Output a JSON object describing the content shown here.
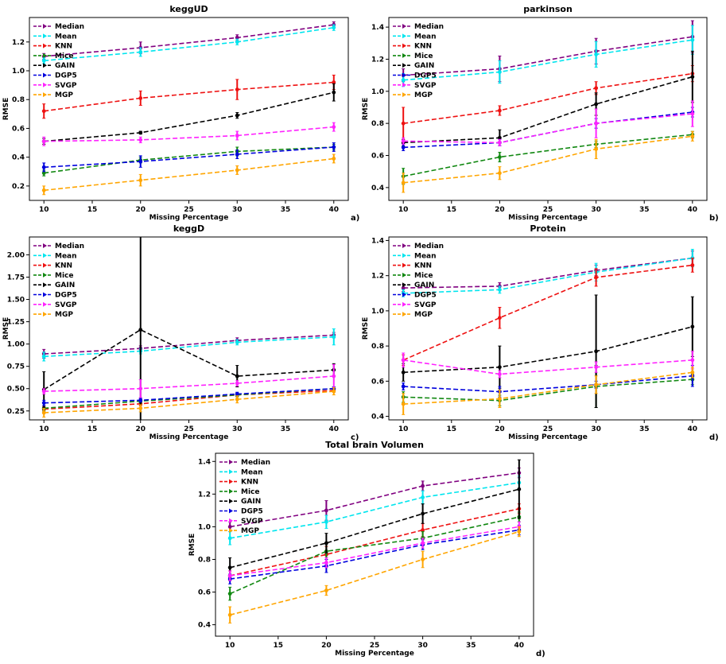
{
  "colors": {
    "Median": "#800080",
    "Mean": "#00e5ee",
    "KNN": "#ee1111",
    "Mice": "#118811",
    "GAIN": "#000000",
    "DGP5": "#0000dd",
    "SVGP": "#ff22ff",
    "MGP": "#ffa500"
  },
  "chart_data": [
    {
      "type": "line",
      "title": "keggUD",
      "xlabel": "Missing Percentage",
      "ylabel": "RMSE",
      "panel_label": "a)",
      "x": [
        10,
        20,
        30,
        40
      ],
      "xlim": [
        8.5,
        41.5
      ],
      "ylim": [
        0.1,
        1.37
      ],
      "xticks": [
        10,
        15,
        20,
        25,
        30,
        35,
        40
      ],
      "yticks": [
        0.2,
        0.4,
        0.6,
        0.8,
        1.0,
        1.2
      ],
      "legend": "top-left",
      "series": [
        {
          "name": "Median",
          "values": [
            1.1,
            1.16,
            1.23,
            1.32
          ],
          "errors": [
            0.02,
            0.04,
            0.02,
            0.02
          ]
        },
        {
          "name": "Mean",
          "values": [
            1.07,
            1.13,
            1.2,
            1.3
          ],
          "errors": [
            0.02,
            0.03,
            0.02,
            0.02
          ]
        },
        {
          "name": "KNN",
          "values": [
            0.72,
            0.81,
            0.87,
            0.92
          ],
          "errors": [
            0.05,
            0.05,
            0.07,
            0.05
          ]
        },
        {
          "name": "Mice",
          "values": [
            0.29,
            0.38,
            0.44,
            0.47
          ],
          "errors": [
            0.02,
            0.02,
            0.03,
            0.02
          ]
        },
        {
          "name": "GAIN",
          "values": [
            0.51,
            0.57,
            0.69,
            0.85
          ],
          "errors": [
            0.02,
            0.01,
            0.02,
            0.06
          ]
        },
        {
          "name": "DGP5",
          "values": [
            0.33,
            0.37,
            0.42,
            0.47
          ],
          "errors": [
            0.03,
            0.04,
            0.03,
            0.03
          ]
        },
        {
          "name": "SVGP",
          "values": [
            0.51,
            0.52,
            0.55,
            0.61
          ],
          "errors": [
            0.03,
            0.02,
            0.03,
            0.03
          ]
        },
        {
          "name": "MGP",
          "values": [
            0.17,
            0.24,
            0.31,
            0.39
          ],
          "errors": [
            0.03,
            0.04,
            0.03,
            0.03
          ]
        }
      ]
    },
    {
      "type": "line",
      "title": "parkinson",
      "xlabel": "Missing Percentage",
      "ylabel": "RMSE",
      "panel_label": "b)",
      "x": [
        10,
        20,
        30,
        40
      ],
      "xlim": [
        8.5,
        41.5
      ],
      "ylim": [
        0.32,
        1.46
      ],
      "xticks": [
        10,
        15,
        20,
        25,
        30,
        35,
        40
      ],
      "yticks": [
        0.4,
        0.6,
        0.8,
        1.0,
        1.2,
        1.4
      ],
      "legend": "top-left",
      "series": [
        {
          "name": "Median",
          "values": [
            1.1,
            1.14,
            1.25,
            1.34
          ],
          "errors": [
            0.04,
            0.08,
            0.08,
            0.1
          ]
        },
        {
          "name": "Mean",
          "values": [
            1.07,
            1.12,
            1.23,
            1.32
          ],
          "errors": [
            0.04,
            0.07,
            0.08,
            0.09
          ]
        },
        {
          "name": "KNN",
          "values": [
            0.8,
            0.88,
            1.02,
            1.11
          ],
          "errors": [
            0.1,
            0.03,
            0.04,
            0.05
          ]
        },
        {
          "name": "Mice",
          "values": [
            0.47,
            0.59,
            0.67,
            0.73
          ],
          "errors": [
            0.05,
            0.03,
            0.02,
            0.02
          ]
        },
        {
          "name": "GAIN",
          "values": [
            0.68,
            0.71,
            0.92,
            1.09
          ],
          "errors": [
            0.02,
            0.05,
            0.07,
            0.16
          ]
        },
        {
          "name": "DGP5",
          "values": [
            0.65,
            0.68,
            0.8,
            0.87
          ],
          "errors": [
            0.02,
            0.02,
            0.03,
            0.03
          ]
        },
        {
          "name": "SVGP",
          "values": [
            0.69,
            0.68,
            0.8,
            0.86
          ],
          "errors": [
            0.02,
            0.02,
            0.09,
            0.08
          ]
        },
        {
          "name": "MGP",
          "values": [
            0.43,
            0.49,
            0.64,
            0.72
          ],
          "errors": [
            0.06,
            0.04,
            0.06,
            0.03
          ]
        }
      ]
    },
    {
      "type": "line",
      "title": "keggD",
      "xlabel": "Missing Percentage",
      "ylabel": "RMSE",
      "panel_label": "c)",
      "x": [
        10,
        20,
        30,
        40
      ],
      "xlim": [
        8.5,
        41.5
      ],
      "ylim": [
        0.15,
        2.2
      ],
      "xticks": [
        10,
        15,
        20,
        25,
        30,
        35,
        40
      ],
      "yticks": [
        0.25,
        0.5,
        0.75,
        1.0,
        1.25,
        1.5,
        1.75,
        2.0
      ],
      "ytick_labels": [
        "0.25",
        "0.50",
        "0.75",
        "1.00",
        "1.25",
        "1.50",
        "1.75",
        "2.00"
      ],
      "legend": "top-left",
      "series": [
        {
          "name": "Median",
          "values": [
            0.89,
            0.95,
            1.04,
            1.1
          ],
          "errors": [
            0.05,
            0.03,
            0.03,
            0.03
          ]
        },
        {
          "name": "Mean",
          "values": [
            0.86,
            0.92,
            1.02,
            1.08
          ],
          "errors": [
            0.05,
            0.03,
            0.03,
            0.09
          ]
        },
        {
          "name": "KNN",
          "values": [
            0.27,
            0.33,
            0.43,
            0.48
          ],
          "errors": [
            0.03,
            0.02,
            0.02,
            0.02
          ]
        },
        {
          "name": "Mice",
          "values": [
            0.28,
            0.36,
            0.43,
            0.5
          ],
          "errors": [
            0.03,
            0.02,
            0.02,
            0.02
          ]
        },
        {
          "name": "GAIN",
          "values": [
            0.49,
            1.16,
            0.64,
            0.71
          ],
          "errors": [
            0.2,
            1.1,
            0.12,
            0.07
          ]
        },
        {
          "name": "DGP5",
          "values": [
            0.34,
            0.37,
            0.44,
            0.5
          ],
          "errors": [
            0.03,
            0.02,
            0.02,
            0.02
          ]
        },
        {
          "name": "SVGP",
          "values": [
            0.47,
            0.5,
            0.56,
            0.64
          ],
          "errors": [
            0.03,
            0.1,
            0.03,
            0.13
          ]
        },
        {
          "name": "MGP",
          "values": [
            0.23,
            0.28,
            0.38,
            0.47
          ],
          "errors": [
            0.05,
            0.04,
            0.04,
            0.04
          ]
        }
      ]
    },
    {
      "type": "line",
      "title": "Protein",
      "xlabel": "Missing Percentage",
      "ylabel": "RMSE",
      "panel_label": "d)",
      "x": [
        10,
        20,
        30,
        40
      ],
      "xlim": [
        8.5,
        41.5
      ],
      "ylim": [
        0.38,
        1.42
      ],
      "xticks": [
        10,
        15,
        20,
        25,
        30,
        35,
        40
      ],
      "yticks": [
        0.4,
        0.6,
        0.8,
        1.0,
        1.2,
        1.4
      ],
      "legend": "top-left",
      "series": [
        {
          "name": "Median",
          "values": [
            1.13,
            1.14,
            1.23,
            1.3
          ],
          "errors": [
            0.02,
            0.02,
            0.03,
            0.04
          ]
        },
        {
          "name": "Mean",
          "values": [
            1.1,
            1.12,
            1.22,
            1.3
          ],
          "errors": [
            0.02,
            0.02,
            0.05,
            0.05
          ]
        },
        {
          "name": "KNN",
          "values": [
            0.72,
            0.96,
            1.19,
            1.26
          ],
          "errors": [
            0.03,
            0.06,
            0.05,
            0.04
          ]
        },
        {
          "name": "Mice",
          "values": [
            0.51,
            0.49,
            0.57,
            0.61
          ],
          "errors": [
            0.03,
            0.03,
            0.12,
            0.03
          ]
        },
        {
          "name": "GAIN",
          "values": [
            0.65,
            0.68,
            0.77,
            0.91
          ],
          "errors": [
            0.05,
            0.12,
            0.32,
            0.17
          ]
        },
        {
          "name": "DGP5",
          "values": [
            0.57,
            0.54,
            0.58,
            0.63
          ],
          "errors": [
            0.02,
            0.03,
            0.02,
            0.06
          ]
        },
        {
          "name": "SVGP",
          "values": [
            0.72,
            0.64,
            0.68,
            0.72
          ],
          "errors": [
            0.04,
            0.02,
            0.03,
            0.05
          ]
        },
        {
          "name": "MGP",
          "values": [
            0.47,
            0.5,
            0.58,
            0.65
          ],
          "errors": [
            0.06,
            0.05,
            0.05,
            0.03
          ]
        }
      ]
    },
    {
      "type": "line",
      "title": "Total brain Volumen",
      "xlabel": "Missing Percentage",
      "ylabel": "RMSE",
      "panel_label": "d)",
      "x": [
        10,
        20,
        30,
        40
      ],
      "xlim": [
        8.5,
        41.5
      ],
      "ylim": [
        0.33,
        1.45
      ],
      "xticks": [
        10,
        15,
        20,
        25,
        30,
        35,
        40
      ],
      "yticks": [
        0.4,
        0.6,
        0.8,
        1.0,
        1.2,
        1.4
      ],
      "legend": "top-left",
      "series": [
        {
          "name": "Median",
          "values": [
            1.0,
            1.1,
            1.25,
            1.33
          ],
          "errors": [
            0.03,
            0.06,
            0.03,
            0.03
          ]
        },
        {
          "name": "Mean",
          "values": [
            0.93,
            1.03,
            1.18,
            1.27
          ],
          "errors": [
            0.04,
            0.04,
            0.04,
            0.04
          ]
        },
        {
          "name": "KNN",
          "values": [
            0.7,
            0.83,
            0.98,
            1.11
          ],
          "errors": [
            0.03,
            0.05,
            0.04,
            0.03
          ]
        },
        {
          "name": "Mice",
          "values": [
            0.59,
            0.85,
            0.93,
            1.06
          ],
          "errors": [
            0.04,
            0.05,
            0.04,
            0.03
          ]
        },
        {
          "name": "GAIN",
          "values": [
            0.75,
            0.9,
            1.08,
            1.23
          ],
          "errors": [
            0.06,
            0.06,
            0.06,
            0.18
          ]
        },
        {
          "name": "DGP5",
          "values": [
            0.68,
            0.76,
            0.89,
            0.98
          ],
          "errors": [
            0.03,
            0.04,
            0.03,
            0.03
          ]
        },
        {
          "name": "SVGP",
          "values": [
            0.7,
            0.78,
            0.9,
            1.0
          ],
          "errors": [
            0.03,
            0.03,
            0.03,
            0.03
          ]
        },
        {
          "name": "MGP",
          "values": [
            0.46,
            0.61,
            0.8,
            0.97
          ],
          "errors": [
            0.05,
            0.03,
            0.05,
            0.03
          ]
        }
      ]
    }
  ]
}
